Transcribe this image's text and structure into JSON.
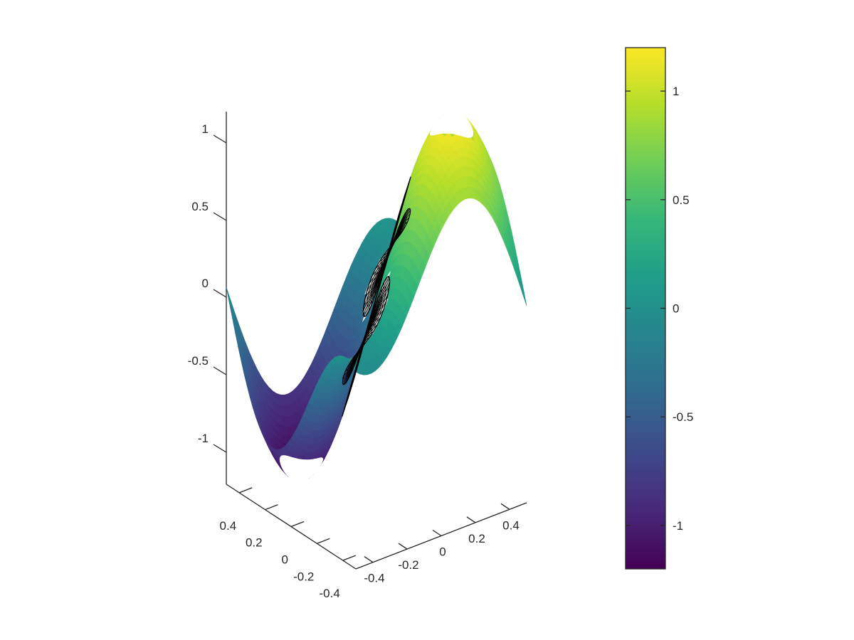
{
  "chart_data": [
    {
      "type": "surface",
      "title": "",
      "xlabel": "",
      "ylabel": "",
      "zlabel": "",
      "colormap": "viridis",
      "colormap_stops": [
        "#440154",
        "#482878",
        "#3e4989",
        "#31688e",
        "#26828e",
        "#1f9e89",
        "#35b779",
        "#6ece58",
        "#b5de2b",
        "#fde725"
      ],
      "xlim": [
        -0.5,
        0.5
      ],
      "ylim": [
        -0.5,
        0.5
      ],
      "zlim": [
        -1.2,
        1.2
      ],
      "x_ticks": [
        "-0.4",
        "-0.2",
        "0",
        "0.2",
        "0.4"
      ],
      "y_ticks": [
        "-0.4",
        "-0.2",
        "0",
        "0.2",
        "0.4"
      ],
      "z_ticks": [
        "-1",
        "-0.5",
        "0",
        "0.5",
        "1"
      ],
      "z_tick_values": [
        -1,
        -0.5,
        0,
        0.5,
        1
      ],
      "surface_function": "z = sin(2*pi*x) * sin(2*pi*y) on the square [-0.5,0.5]^2 with circular holes",
      "holes": [
        {
          "x": -0.25,
          "y": 0.25,
          "style": "empty"
        },
        {
          "x": 0.25,
          "y": -0.25,
          "style": "empty"
        },
        {
          "x": -0.25,
          "y": -0.25,
          "style": "black-mesh"
        },
        {
          "x": 0.25,
          "y": 0.25,
          "style": "black-mesh"
        },
        {
          "x": 0,
          "y": 0,
          "style": "black-mesh"
        }
      ],
      "grid": false
    },
    {
      "type": "colorbar",
      "range": [
        -1.2,
        1.2
      ],
      "ticks": [
        "-1",
        "-0.5",
        "0",
        "0.5",
        "1"
      ],
      "tick_values": [
        -1,
        -0.5,
        0,
        0.5,
        1
      ]
    }
  ]
}
